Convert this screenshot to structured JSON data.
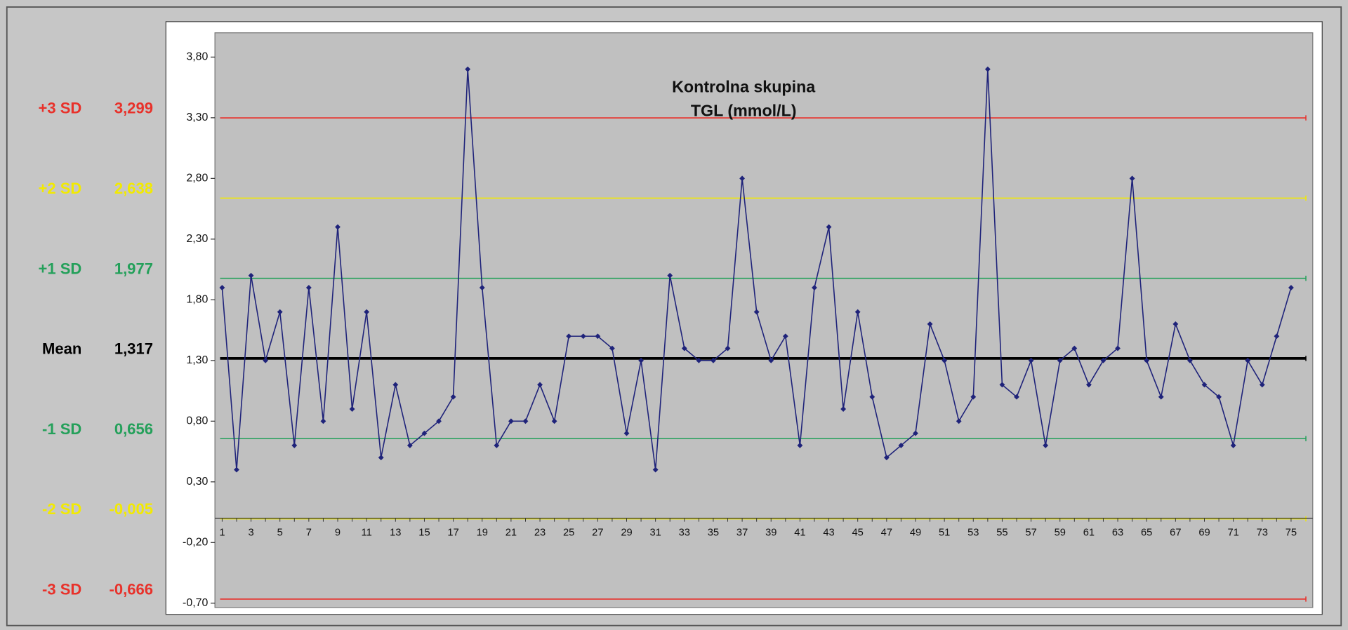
{
  "chart_data": {
    "type": "line",
    "title": "Kontrolna skupina",
    "subtitle": "TGL (mmol/L)",
    "color": "#1f237a",
    "categories": [
      1,
      null,
      3,
      null,
      5,
      null,
      7,
      null,
      9,
      null,
      11,
      null,
      13,
      null,
      15,
      null,
      17,
      null,
      19,
      null,
      21,
      null,
      23,
      null,
      25,
      null,
      27,
      null,
      29,
      null,
      31,
      null,
      33,
      null,
      35,
      null,
      37,
      null,
      39,
      null,
      41,
      null,
      43,
      null,
      45,
      null,
      47,
      null,
      49,
      null,
      51,
      null,
      53,
      null,
      55,
      null,
      57,
      null,
      59,
      null,
      61,
      null,
      63,
      null,
      65,
      null,
      67,
      null,
      69,
      null,
      71,
      null,
      73,
      null,
      75
    ],
    "values": [
      1.9,
      0.4,
      2.0,
      1.3,
      1.7,
      0.6,
      1.9,
      0.8,
      2.4,
      0.9,
      1.7,
      0.5,
      1.1,
      0.6,
      0.7,
      0.8,
      1.0,
      3.7,
      1.9,
      0.6,
      0.8,
      0.8,
      1.1,
      0.8,
      1.5,
      1.5,
      1.5,
      1.4,
      0.7,
      1.3,
      0.4,
      2.0,
      1.4,
      1.3,
      1.3,
      1.4,
      2.8,
      1.7,
      1.3,
      1.5,
      0.6,
      1.9,
      2.4,
      0.9,
      1.7,
      1.0,
      0.5,
      0.6,
      0.7,
      1.6,
      1.3,
      0.8,
      1.0,
      3.7,
      1.1,
      1.0,
      1.3,
      0.6,
      1.3,
      1.4,
      1.1,
      1.3,
      1.4,
      2.8,
      1.3,
      1.0,
      1.6,
      1.3,
      1.1,
      1.0,
      0.6,
      1.3,
      1.1,
      1.5,
      1.9
    ],
    "ylim": [
      -0.7,
      4.0
    ],
    "yticks": [
      {
        "value": -0.7,
        "label": "-0,70"
      },
      {
        "value": -0.2,
        "label": "-0,20"
      },
      {
        "value": 0.3,
        "label": "0,30"
      },
      {
        "value": 0.8,
        "label": "0,80"
      },
      {
        "value": 1.3,
        "label": "1,30"
      },
      {
        "value": 1.8,
        "label": "1,80"
      },
      {
        "value": 2.3,
        "label": "2,30"
      },
      {
        "value": 2.8,
        "label": "2,80"
      },
      {
        "value": 3.3,
        "label": "3,30"
      },
      {
        "value": 3.8,
        "label": "3,80"
      }
    ],
    "grid": false,
    "reference_lines": [
      {
        "name": "+3 SD",
        "value": 3.299,
        "label": "3,299",
        "color": "#e8312a"
      },
      {
        "name": "+2 SD",
        "value": 2.638,
        "label": "2,638",
        "color": "#f2ea00"
      },
      {
        "name": "+1 SD",
        "value": 1.977,
        "label": "1,977",
        "color": "#24a05a"
      },
      {
        "name": "Mean",
        "value": 1.317,
        "label": "1,317",
        "color": "#000000"
      },
      {
        "name": "-1 SD",
        "value": 0.656,
        "label": "0,656",
        "color": "#24a05a"
      },
      {
        "name": "-2 SD",
        "value": -0.005,
        "label": "-0,005",
        "color": "#f2ea00"
      },
      {
        "name": "-3 SD",
        "value": -0.666,
        "label": "-0,666",
        "color": "#e8312a"
      }
    ]
  }
}
